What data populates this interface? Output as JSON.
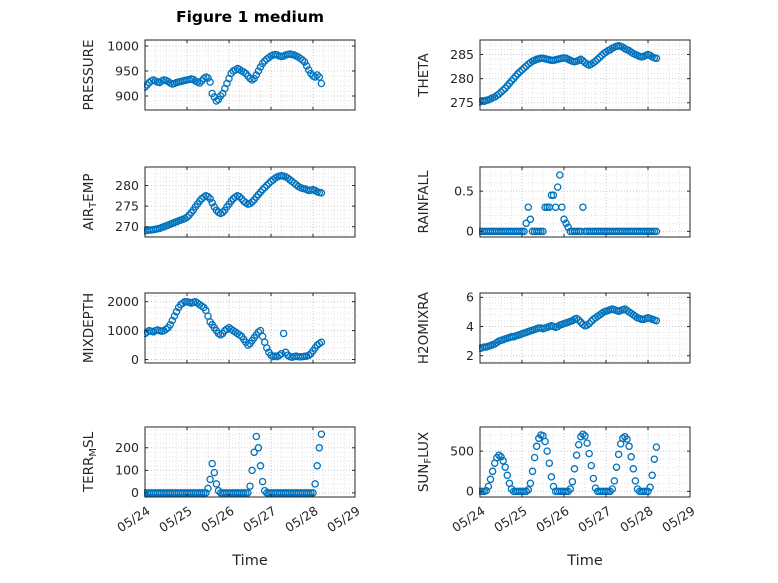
{
  "title": "Figure 1 medium",
  "xlabel": "Time",
  "marker": {
    "color": "#0072BD",
    "radius": 3.1
  },
  "x_axis": {
    "lim": [
      0,
      5
    ],
    "ticks": [
      0,
      1,
      2,
      3,
      4,
      5
    ],
    "tick_labels": [
      "05/24",
      "05/25",
      "05/26",
      "05/27",
      "05/28",
      "05/29"
    ],
    "minor_step": 0.25
  },
  "chart_data": [
    {
      "type": "scatter",
      "name": "pressure",
      "ylabel": "PRESSURE",
      "ylim": [
        872,
        1012
      ],
      "yticks": [
        900,
        950,
        1000
      ],
      "x0": 0,
      "dx": 0.05,
      "y": [
        918,
        922,
        927,
        930,
        932,
        930,
        928,
        927,
        930,
        932,
        931,
        929,
        926,
        924,
        925,
        927,
        928,
        929,
        930,
        931,
        932,
        933,
        934,
        933,
        930,
        928,
        926,
        930,
        935,
        938,
        936,
        928,
        905,
        898,
        890,
        893,
        900,
        905,
        915,
        925,
        935,
        945,
        950,
        952,
        955,
        953,
        950,
        948,
        945,
        940,
        935,
        932,
        935,
        942,
        950,
        958,
        965,
        970,
        974,
        977,
        980,
        982,
        983,
        982,
        980,
        979,
        980,
        982,
        983,
        984,
        983,
        982,
        980,
        978,
        975,
        972,
        968,
        960,
        952,
        945,
        940,
        938,
        942,
        938,
        925
      ]
    },
    {
      "type": "scatter",
      "name": "theta",
      "ylabel": "THETA",
      "ylim": [
        273.5,
        288
      ],
      "yticks": [
        275,
        280,
        285
      ],
      "x0": 0,
      "dx": 0.05,
      "y": [
        275.2,
        275.4,
        275.3,
        275.5,
        275.6,
        275.8,
        276.0,
        276.2,
        276.5,
        276.8,
        277.2,
        277.6,
        278.0,
        278.5,
        279.0,
        279.5,
        280.0,
        280.5,
        281.0,
        281.4,
        281.8,
        282.2,
        282.6,
        283.0,
        283.3,
        283.6,
        283.8,
        284.0,
        284.1,
        284.2,
        284.2,
        284.1,
        284.0,
        283.9,
        283.8,
        283.8,
        283.9,
        284.0,
        284.1,
        284.2,
        284.3,
        284.2,
        284.0,
        283.8,
        283.6,
        283.5,
        283.6,
        283.8,
        284.0,
        283.7,
        283.3,
        283.0,
        282.8,
        283.0,
        283.3,
        283.6,
        284.0,
        284.4,
        284.8,
        285.2,
        285.5,
        285.8,
        286.0,
        286.3,
        286.5,
        286.7,
        286.8,
        286.7,
        286.5,
        286.2,
        286.0,
        285.8,
        285.5,
        285.2,
        285.0,
        284.8,
        284.6,
        284.5,
        284.6,
        284.8,
        285.0,
        284.8,
        284.5,
        284.3,
        284.2
      ]
    },
    {
      "type": "scatter",
      "name": "air_temp",
      "ylabel": "AIR_TEMP",
      "ylim": [
        267.5,
        284.5
      ],
      "yticks": [
        270,
        275,
        280
      ],
      "x0": 0,
      "dx": 0.05,
      "y": [
        269.0,
        269.1,
        269.2,
        269.2,
        269.3,
        269.4,
        269.5,
        269.6,
        269.8,
        270.0,
        270.2,
        270.4,
        270.6,
        270.8,
        271.0,
        271.2,
        271.4,
        271.6,
        271.8,
        272.0,
        272.3,
        272.8,
        273.4,
        274.0,
        274.8,
        275.5,
        276.2,
        276.8,
        277.2,
        277.5,
        277.3,
        276.8,
        275.8,
        274.8,
        274.0,
        273.5,
        273.2,
        273.5,
        274.0,
        274.8,
        275.5,
        276.2,
        276.8,
        277.2,
        277.5,
        277.3,
        276.8,
        276.2,
        275.8,
        275.5,
        275.6,
        276.0,
        276.5,
        277.2,
        277.8,
        278.4,
        279.0,
        279.5,
        280.0,
        280.5,
        281.0,
        281.4,
        281.8,
        282.1,
        282.3,
        282.4,
        282.3,
        282.1,
        281.8,
        281.4,
        281.0,
        280.6,
        280.2,
        279.8,
        279.5,
        279.3,
        279.2,
        279.0,
        278.8,
        278.9,
        279.0,
        278.8,
        278.5,
        278.3,
        278.2
      ]
    },
    {
      "type": "scatter",
      "name": "rainfall",
      "ylabel": "RAINFALL",
      "ylim": [
        -0.07,
        0.8
      ],
      "yticks": [
        0,
        0.5
      ],
      "x0": 0,
      "dx": 0.05,
      "y": [
        0,
        0,
        0,
        0,
        0,
        0,
        0,
        0,
        0,
        0,
        0,
        0,
        0,
        0,
        0,
        0,
        0,
        0,
        0,
        0,
        0,
        0,
        0.1,
        0.3,
        0.15,
        0,
        0,
        0,
        0,
        0,
        0,
        0.3,
        0.3,
        0.3,
        0.45,
        0.45,
        0.3,
        0.55,
        0.7,
        0.3,
        0.15,
        0.1,
        0.05,
        0,
        0,
        0,
        0,
        0,
        0,
        0.3,
        0,
        0,
        0,
        0,
        0,
        0,
        0,
        0,
        0,
        0,
        0,
        0,
        0,
        0,
        0,
        0,
        0,
        0,
        0,
        0,
        0,
        0,
        0,
        0,
        0,
        0,
        0,
        0,
        0,
        0,
        0,
        0,
        0,
        0,
        0
      ]
    },
    {
      "type": "scatter",
      "name": "mixdepth",
      "ylabel": "MIXDEPTH",
      "ylim": [
        -120,
        2300
      ],
      "yticks": [
        0,
        1000,
        2000
      ],
      "x0": 0,
      "dx": 0.05,
      "y": [
        900,
        950,
        1000,
        980,
        960,
        1000,
        1020,
        1000,
        980,
        1000,
        1050,
        1100,
        1200,
        1350,
        1500,
        1650,
        1800,
        1900,
        1950,
        2000,
        2000,
        1980,
        1950,
        1980,
        2000,
        1950,
        1900,
        1850,
        1800,
        1700,
        1500,
        1300,
        1200,
        1100,
        1000,
        900,
        850,
        900,
        1000,
        1050,
        1100,
        1050,
        1000,
        950,
        900,
        850,
        800,
        700,
        600,
        500,
        550,
        650,
        750,
        850,
        950,
        1000,
        800,
        600,
        400,
        250,
        150,
        100,
        120,
        100,
        150,
        200,
        900,
        250,
        150,
        100,
        80,
        100,
        120,
        100,
        90,
        100,
        110,
        120,
        150,
        200,
        300,
        400,
        500,
        550,
        600
      ]
    },
    {
      "type": "scatter",
      "name": "h2omixra",
      "ylabel": "H2OMIXRA",
      "ylim": [
        1.5,
        6.3
      ],
      "yticks": [
        2,
        4,
        6
      ],
      "x0": 0,
      "dx": 0.05,
      "y": [
        2.5,
        2.55,
        2.6,
        2.6,
        2.65,
        2.7,
        2.75,
        2.8,
        2.9,
        3.0,
        3.05,
        3.1,
        3.15,
        3.2,
        3.25,
        3.3,
        3.3,
        3.35,
        3.4,
        3.45,
        3.5,
        3.55,
        3.6,
        3.65,
        3.7,
        3.75,
        3.8,
        3.85,
        3.9,
        3.9,
        3.85,
        3.9,
        3.95,
        4.0,
        4.05,
        4.0,
        3.95,
        4.0,
        4.1,
        4.15,
        4.2,
        4.25,
        4.3,
        4.35,
        4.4,
        4.5,
        4.55,
        4.45,
        4.3,
        4.15,
        4.05,
        4.1,
        4.2,
        4.35,
        4.5,
        4.6,
        4.7,
        4.8,
        4.9,
        5.0,
        5.05,
        5.1,
        5.15,
        5.2,
        5.15,
        5.1,
        5.05,
        5.1,
        5.15,
        5.2,
        5.1,
        5.0,
        4.9,
        4.8,
        4.7,
        4.6,
        4.55,
        4.5,
        4.5,
        4.55,
        4.6,
        4.55,
        4.5,
        4.45,
        4.4
      ]
    },
    {
      "type": "scatter",
      "name": "terr_msl",
      "ylabel": "TERR_MSL",
      "ylim": [
        -18,
        292
      ],
      "yticks": [
        0,
        100,
        200
      ],
      "x0": 0,
      "dx": 0.05,
      "y": [
        0,
        0,
        0,
        0,
        0,
        0,
        0,
        0,
        0,
        0,
        0,
        0,
        0,
        0,
        0,
        0,
        0,
        0,
        0,
        0,
        0,
        0,
        0,
        0,
        0,
        0,
        0,
        0,
        0,
        0,
        20,
        60,
        130,
        90,
        40,
        10,
        0,
        0,
        0,
        0,
        0,
        0,
        0,
        0,
        0,
        0,
        0,
        0,
        0,
        0,
        30,
        100,
        180,
        250,
        200,
        120,
        50,
        10,
        0,
        0,
        0,
        0,
        0,
        0,
        0,
        0,
        0,
        0,
        0,
        0,
        0,
        0,
        0,
        0,
        0,
        0,
        0,
        0,
        0,
        0,
        0,
        40,
        120,
        200,
        260
      ]
    },
    {
      "type": "scatter",
      "name": "sun_flux",
      "ylabel": "SUN_FLUX",
      "ylim": [
        -70,
        800
      ],
      "yticks": [
        0,
        500
      ],
      "x0": 0,
      "dx": 0.05,
      "y": [
        0,
        0,
        0,
        10,
        60,
        150,
        250,
        350,
        420,
        450,
        430,
        380,
        300,
        200,
        100,
        30,
        0,
        0,
        0,
        0,
        0,
        0,
        0,
        20,
        100,
        250,
        420,
        560,
        660,
        700,
        690,
        620,
        500,
        350,
        180,
        60,
        0,
        0,
        0,
        0,
        0,
        0,
        0,
        30,
        120,
        280,
        450,
        580,
        680,
        710,
        690,
        600,
        470,
        320,
        160,
        40,
        0,
        0,
        0,
        0,
        0,
        0,
        0,
        30,
        130,
        300,
        460,
        590,
        660,
        680,
        650,
        560,
        430,
        280,
        130,
        30,
        0,
        0,
        0,
        0,
        0,
        50,
        200,
        400,
        550
      ]
    }
  ]
}
